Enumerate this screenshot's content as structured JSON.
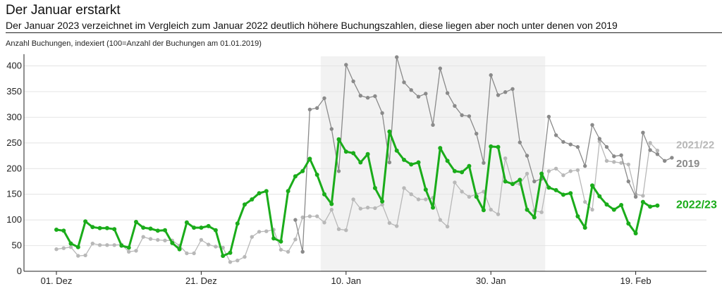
{
  "chart_data": {
    "type": "line",
    "title": "Der Januar erstarkt",
    "subtitle": "Der Januar 2023 verzeichnet im Vergleich zum Januar 2022 deutlich höhere Buchungszahlen, diese liegen aber noch unter denen von 2019",
    "ylabel": "Anzahl Buchungen, indexiert (100=Anzahl der Buchungen am 01.01.2019)",
    "xlabel": "",
    "ylim": [
      0,
      420
    ],
    "yticks": [
      0,
      50,
      100,
      150,
      200,
      250,
      300,
      350,
      400
    ],
    "xticks": [
      {
        "day": 0,
        "label": "01. Dez"
      },
      {
        "day": 20,
        "label": "21. Dez"
      },
      {
        "day": 40,
        "label": "10. Jan"
      },
      {
        "day": 60,
        "label": "30. Jan"
      },
      {
        "day": 80,
        "label": "19. Feb"
      }
    ],
    "highlight": {
      "from": 36.5,
      "to": 67.5
    },
    "grid": true,
    "series": [
      {
        "name": "2019",
        "color": "#8a8a8a",
        "start": 33,
        "values": [
          100,
          38,
          315,
          318,
          337,
          277,
          195,
          402,
          370,
          342,
          338,
          341,
          308,
          212,
          417,
          368,
          353,
          340,
          346,
          285,
          395,
          347,
          322,
          304,
          302,
          268,
          211,
          382,
          343,
          349,
          355,
          251,
          225,
          175,
          180,
          301,
          265,
          252,
          247,
          242,
          205,
          285,
          258,
          242,
          224,
          226,
          175,
          145,
          270,
          236,
          228,
          215,
          221
        ]
      },
      {
        "name": "2021/22",
        "color": "#b8b8b8",
        "start": 0,
        "values": [
          43,
          45,
          47,
          30,
          31,
          54,
          51,
          51,
          51,
          52,
          38,
          40,
          67,
          63,
          61,
          60,
          60,
          50,
          35,
          35,
          61,
          52,
          48,
          46,
          18,
          21,
          28,
          67,
          77,
          78,
          81,
          42,
          38,
          62,
          105,
          107,
          107,
          95,
          120,
          82,
          80,
          140,
          122,
          124,
          123,
          130,
          94,
          88,
          162,
          150,
          140,
          140,
          143,
          100,
          87,
          173,
          155,
          145,
          150,
          155,
          120,
          111,
          220,
          170,
          170,
          190,
          118,
          115,
          195,
          200,
          187,
          195,
          197,
          135,
          120,
          253,
          215,
          213,
          211,
          208,
          150,
          147,
          250,
          235
        ]
      },
      {
        "name": "2022/23",
        "color": "#1aac1a",
        "start": 0,
        "values": [
          81,
          79,
          54,
          47,
          97,
          86,
          84,
          84,
          82,
          50,
          46,
          96,
          85,
          83,
          79,
          80,
          55,
          43,
          95,
          85,
          85,
          88,
          80,
          30,
          36,
          93,
          130,
          140,
          152,
          156,
          64,
          58,
          156,
          185,
          195,
          219,
          188,
          150,
          131,
          257,
          233,
          230,
          212,
          228,
          162,
          136,
          272,
          235,
          217,
          208,
          212,
          159,
          124,
          240,
          215,
          195,
          193,
          205,
          145,
          119,
          243,
          242,
          175,
          170,
          178,
          120,
          105,
          190,
          163,
          158,
          149,
          152,
          107,
          85,
          167,
          146,
          130,
          120,
          129,
          93,
          74,
          135,
          126,
          128
        ]
      }
    ]
  }
}
